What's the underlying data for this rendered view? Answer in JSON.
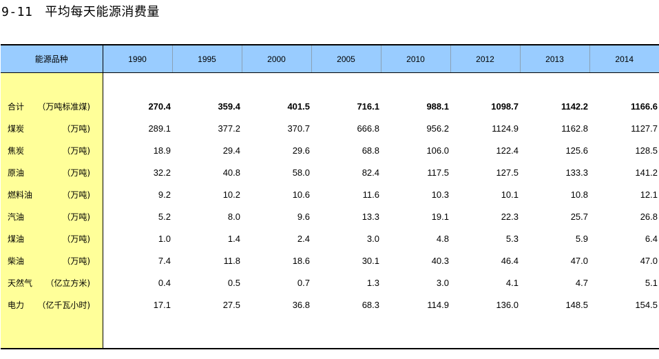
{
  "title": {
    "number": "9-11",
    "text": "平均每天能源消费量"
  },
  "table": {
    "header_label": "能源品种",
    "years": [
      "1990",
      "1995",
      "2000",
      "2005",
      "2010",
      "2012",
      "2013",
      "2014"
    ],
    "rows": [
      {
        "name": "合计",
        "unit": "（万吨标准煤)",
        "values": [
          "270.4",
          "359.4",
          "401.5",
          "716.1",
          "988.1",
          "1098.7",
          "1142.2",
          "1166.6"
        ]
      },
      {
        "name": "煤炭",
        "unit": "（万吨)",
        "values": [
          "289.1",
          "377.2",
          "370.7",
          "666.8",
          "956.2",
          "1124.9",
          "1162.8",
          "1127.7"
        ]
      },
      {
        "name": "焦炭",
        "unit": "（万吨)",
        "values": [
          "18.9",
          "29.4",
          "29.6",
          "68.8",
          "106.0",
          "122.4",
          "125.6",
          "128.5"
        ]
      },
      {
        "name": "原油",
        "unit": "（万吨)",
        "values": [
          "32.2",
          "40.8",
          "58.0",
          "82.4",
          "117.5",
          "127.5",
          "133.3",
          "141.2"
        ]
      },
      {
        "name": "燃料油",
        "unit": "（万吨)",
        "values": [
          "9.2",
          "10.2",
          "10.6",
          "11.6",
          "10.3",
          "10.1",
          "10.8",
          "12.1"
        ]
      },
      {
        "name": "汽油",
        "unit": "（万吨)",
        "values": [
          "5.2",
          "8.0",
          "9.6",
          "13.3",
          "19.1",
          "22.3",
          "25.7",
          "26.8"
        ]
      },
      {
        "name": "煤油",
        "unit": "（万吨)",
        "values": [
          "1.0",
          "1.4",
          "2.4",
          "3.0",
          "4.8",
          "5.3",
          "5.9",
          "6.4"
        ]
      },
      {
        "name": "柴油",
        "unit": "（万吨)",
        "values": [
          "7.4",
          "11.8",
          "18.6",
          "30.1",
          "40.3",
          "46.4",
          "47.0",
          "47.0"
        ]
      },
      {
        "name": "天然气",
        "unit": "（亿立方米)",
        "values": [
          "0.4",
          "0.5",
          "0.7",
          "1.3",
          "3.0",
          "4.1",
          "4.7",
          "5.1"
        ]
      },
      {
        "name": "电力",
        "unit": "（亿千瓦小时)",
        "values": [
          "17.1",
          "27.5",
          "36.8",
          "68.3",
          "114.9",
          "136.0",
          "148.5",
          "154.5"
        ]
      }
    ]
  },
  "colors": {
    "header_bg": "#99ccff",
    "label_col_bg": "#ffff99"
  }
}
